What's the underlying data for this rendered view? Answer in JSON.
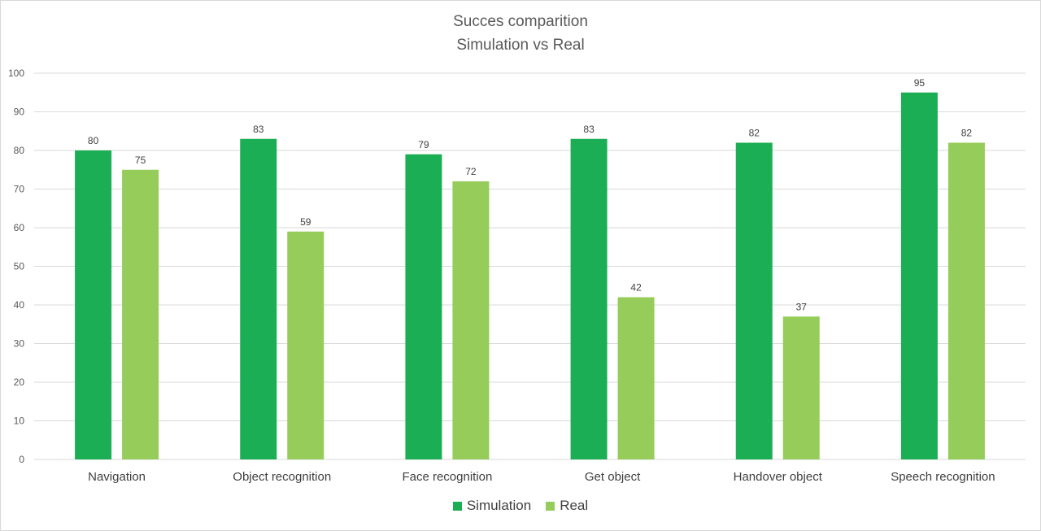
{
  "chart_data": {
    "type": "bar",
    "title": "Succes comparition",
    "subtitle": "Simulation vs Real",
    "categories": [
      "Navigation",
      "Object recognition",
      "Face recognition",
      "Get object",
      "Handover object",
      "Speech recognition"
    ],
    "series": [
      {
        "name": "Simulation",
        "values": [
          80,
          83,
          79,
          83,
          82,
          95
        ],
        "color": "#1cae54"
      },
      {
        "name": "Real",
        "values": [
          75,
          59,
          72,
          42,
          37,
          82
        ],
        "color": "#96cc5a"
      }
    ],
    "yticks": [
      0,
      10,
      20,
      30,
      40,
      50,
      60,
      70,
      80,
      90,
      100
    ],
    "ylim": [
      0,
      100
    ],
    "grid": true,
    "legend_position": "bottom"
  }
}
